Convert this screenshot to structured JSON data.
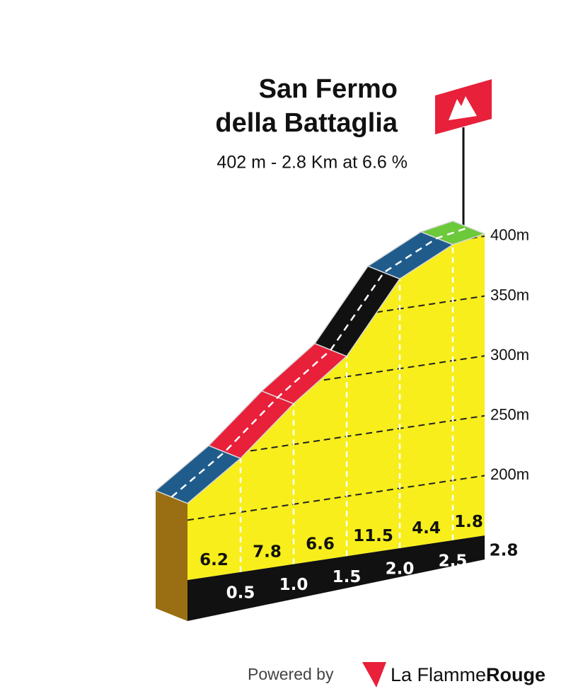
{
  "chart_data": {
    "type": "climb-profile",
    "title": [
      "San Fermo",
      "della Battaglia"
    ],
    "subtitle": "402 m - 2.8 Km at 6.6 %",
    "x": [
      0,
      0.5,
      1,
      1.5,
      2,
      2.5,
      2.8
    ],
    "elevation": [
      214,
      245,
      284,
      317,
      375,
      397,
      402
    ],
    "gradients": [
      6.2,
      7.8,
      6.6,
      11.5,
      4.4,
      1.8
    ],
    "segment_colors": [
      "#1f5c8c",
      "#e8203a",
      "#e8203a",
      "#111111",
      "#1f5c8c",
      "#6cc93a"
    ],
    "xlim": [
      0,
      2.8
    ],
    "xticks": [
      0.5,
      {
        "value": 1,
        "label": "1.0"
      },
      1.5,
      {
        "value": 2,
        "label": "2.0"
      },
      2.5,
      2.8
    ],
    "ylim": [
      150,
      410
    ],
    "yticks": [
      {
        "value": 200,
        "label": "200m"
      },
      {
        "value": 250,
        "label": "250m"
      },
      {
        "value": 300,
        "label": "300m"
      },
      {
        "value": 350,
        "label": "350m"
      },
      {
        "value": 400,
        "label": "400m"
      }
    ],
    "grid": true
  },
  "footer": {
    "powered_by": "Powered by",
    "brand": "La Flamme",
    "brand_bold": "Rouge"
  }
}
